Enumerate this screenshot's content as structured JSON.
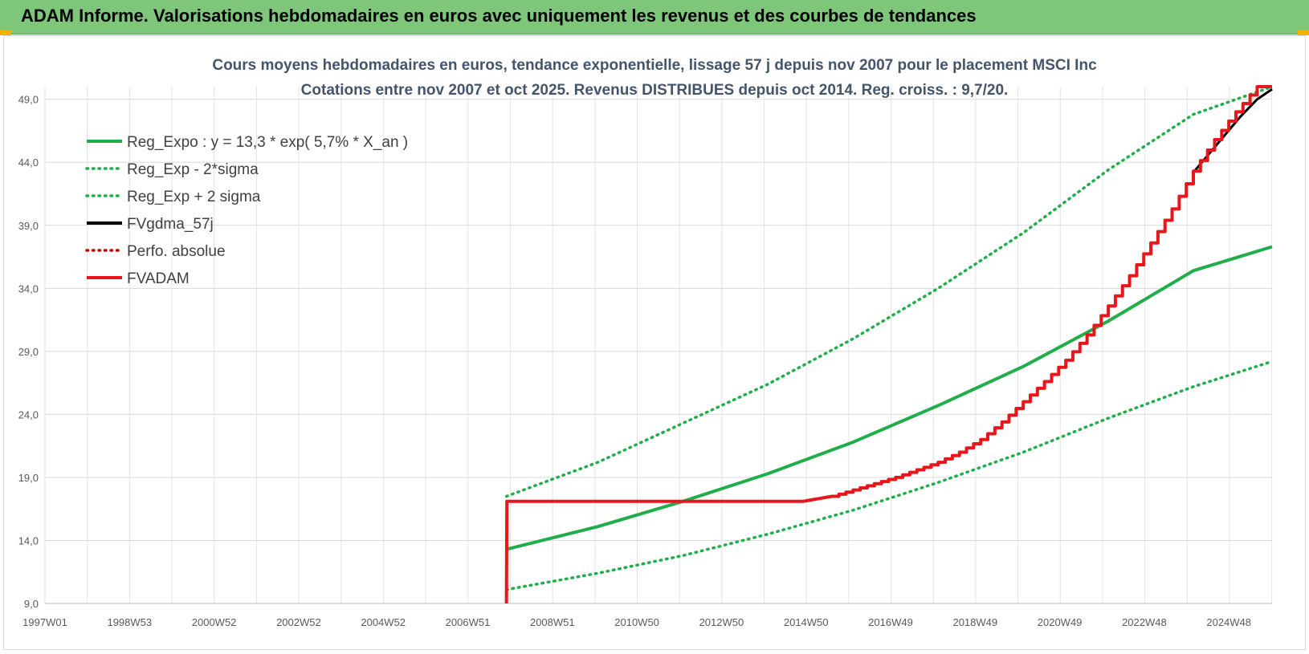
{
  "header": {
    "title": "ADAM Informe. Valorisations hebdomadaires en euros avec uniquement les revenus et des courbes de tendances"
  },
  "chart_data": {
    "type": "line",
    "title": "Cours moyens hebdomadaires en euros, tendance exponentielle, lissage 57 j depuis nov 2007 pour le placement MSCI Inc",
    "subtitle": "Cotations entre nov 2007 et oct 2025. Revenus DISTRIBUES depuis oct 2014. Reg. croiss. : 9,7/20.",
    "xlabel": "",
    "ylabel": "",
    "ylim": [
      9,
      50
    ],
    "xlim": [
      1997.0,
      2025.85
    ],
    "y_ticks": [
      "9,0",
      "14,0",
      "19,0",
      "24,0",
      "29,0",
      "34,0",
      "39,0",
      "44,0",
      "49,0"
    ],
    "x_ticks": [
      "1997W01",
      "1998W53",
      "2000W52",
      "2002W52",
      "2004W52",
      "2006W51",
      "2008W51",
      "2010W50",
      "2012W50",
      "2014W50",
      "2016W49",
      "2018W49",
      "2020W49",
      "2022W48",
      "2024W48"
    ],
    "grid": true,
    "legend_position": "top-left",
    "series": [
      {
        "name": "Reg_Expo : y = 13,3 * exp( 5,7% *  X_an )",
        "color": "#1fae4a",
        "style": "solid",
        "x": [
          2007.85,
          2010,
          2012,
          2014,
          2016,
          2018,
          2020,
          2022,
          2024,
          2025.85
        ],
        "y": [
          13.3,
          15.1,
          17.1,
          19.3,
          21.8,
          24.7,
          27.8,
          31.4,
          35.4,
          37.3
        ]
      },
      {
        "name": "Reg_Exp - 2*sigma",
        "color": "#1fae4a",
        "style": "dotted",
        "x": [
          2007.85,
          2010,
          2012,
          2014,
          2016,
          2018,
          2020,
          2022,
          2024,
          2025.85
        ],
        "y": [
          10.1,
          11.4,
          12.8,
          14.5,
          16.4,
          18.6,
          21.0,
          23.7,
          26.2,
          28.2
        ]
      },
      {
        "name": "Reg_Exp + 2 sigma",
        "color": "#1fae4a",
        "style": "dotted",
        "x": [
          2007.85,
          2010,
          2012,
          2014,
          2016,
          2018,
          2020,
          2022,
          2024,
          2025.85
        ],
        "y": [
          17.5,
          20.2,
          23.3,
          26.4,
          30.0,
          34.0,
          38.4,
          43.4,
          47.8,
          50.0
        ]
      },
      {
        "name": "FVgdma_57j",
        "color": "#000000",
        "style": "solid",
        "x": [
          2024.0,
          2024.6,
          2025.1,
          2025.5,
          2025.85
        ],
        "y": [
          43.2,
          45.6,
          47.6,
          49.0,
          49.8
        ]
      },
      {
        "name": "Perfo. absolue",
        "color": "#c00000",
        "style": "dotted",
        "x": [],
        "y": []
      },
      {
        "name": "FVADAM",
        "color": "#e8161a",
        "style": "solid",
        "x": [
          2007.85,
          2007.86,
          2014.83,
          2015.5,
          2016,
          2016.5,
          2017,
          2017.5,
          2018,
          2018.5,
          2019,
          2019.5,
          2020,
          2020.5,
          2021,
          2021.5,
          2022,
          2022.5,
          2023,
          2023.5,
          2024,
          2024.5,
          2025,
          2025.5,
          2025.85
        ],
        "y": [
          9.0,
          17.1,
          17.1,
          17.5,
          18.0,
          18.5,
          19.0,
          19.6,
          20.2,
          21.0,
          22.0,
          23.4,
          25.0,
          26.6,
          28.3,
          30.3,
          32.6,
          35.0,
          37.6,
          40.3,
          43.3,
          45.8,
          48.0,
          50.0,
          50.0
        ]
      }
    ]
  }
}
